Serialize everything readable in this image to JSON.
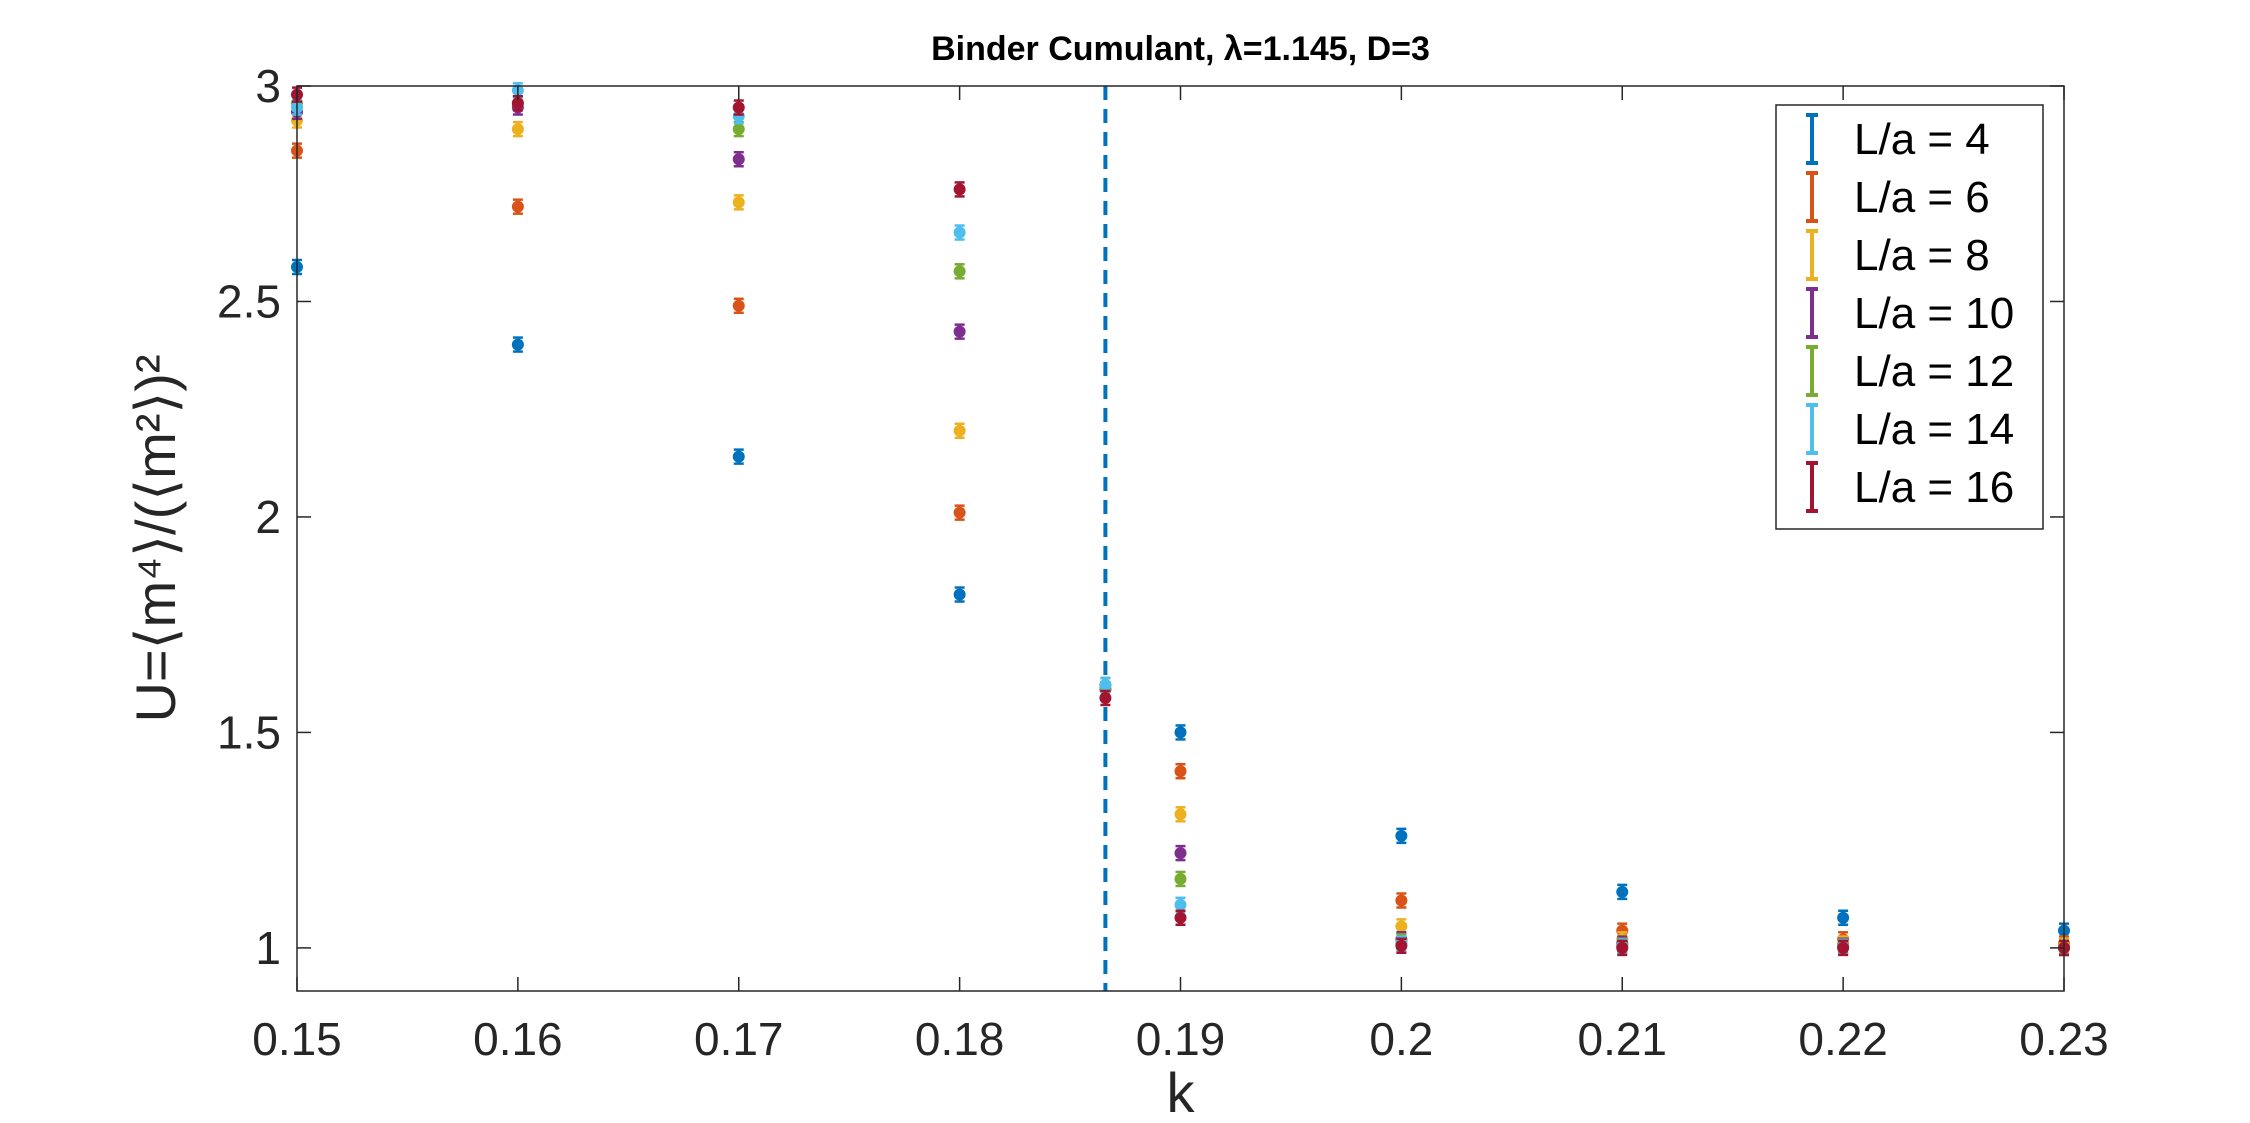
{
  "chart_data": {
    "type": "scatter",
    "title": "Binder Cumulant, λ=1.145, D=3",
    "xlabel": "k",
    "ylabel": "U=⟨m⁴⟩/(⟨m²⟩)²",
    "xlim": [
      0.15,
      0.23
    ],
    "ylim": [
      0.9,
      3.0
    ],
    "x_ticks": [
      "0.15",
      "0.16",
      "0.17",
      "0.18",
      "0.19",
      "0.2",
      "0.21",
      "0.22",
      "0.23"
    ],
    "y_ticks": [
      "1",
      "1.5",
      "2",
      "2.5",
      "3"
    ],
    "grid": false,
    "legend_position": "top-right",
    "vertical_reference_line": {
      "x": 0.1866,
      "style": "dashed",
      "color": "#0072BD"
    },
    "x": [
      0.15,
      0.16,
      0.17,
      0.18,
      0.1866,
      0.19,
      0.2,
      0.21,
      0.22,
      0.23
    ],
    "series": [
      {
        "name": "L/a = 4",
        "color": "#0072BD",
        "values": [
          2.58,
          2.4,
          2.14,
          1.82,
          1.61,
          1.5,
          1.26,
          1.13,
          1.07,
          1.04
        ]
      },
      {
        "name": "L/a = 6",
        "color": "#D95319",
        "values": [
          2.85,
          2.72,
          2.49,
          2.01,
          1.6,
          1.41,
          1.11,
          1.04,
          1.02,
          1.01
        ]
      },
      {
        "name": "L/a = 8",
        "color": "#EDB120",
        "values": [
          2.92,
          2.9,
          2.73,
          2.2,
          1.6,
          1.31,
          1.05,
          1.02,
          1.01,
          1.005
        ]
      },
      {
        "name": "L/a = 10",
        "color": "#7E2F8E",
        "values": [
          2.94,
          2.95,
          2.83,
          2.43,
          1.6,
          1.22,
          1.02,
          1.01,
          1.005,
          1.0
        ]
      },
      {
        "name": "L/a = 12",
        "color": "#77AC30",
        "values": [
          2.96,
          2.96,
          2.9,
          2.57,
          1.6,
          1.16,
          1.015,
          1.005,
          1.003,
          1.0
        ]
      },
      {
        "name": "L/a = 14",
        "color": "#4DBEEE",
        "values": [
          2.95,
          2.99,
          2.93,
          2.66,
          1.61,
          1.1,
          1.01,
          1.003,
          1.002,
          1.0
        ]
      },
      {
        "name": "L/a = 16",
        "color": "#A2142F",
        "values": [
          2.98,
          2.96,
          2.95,
          2.76,
          1.58,
          1.07,
          1.005,
          1.0,
          1.0,
          1.0
        ]
      }
    ]
  }
}
